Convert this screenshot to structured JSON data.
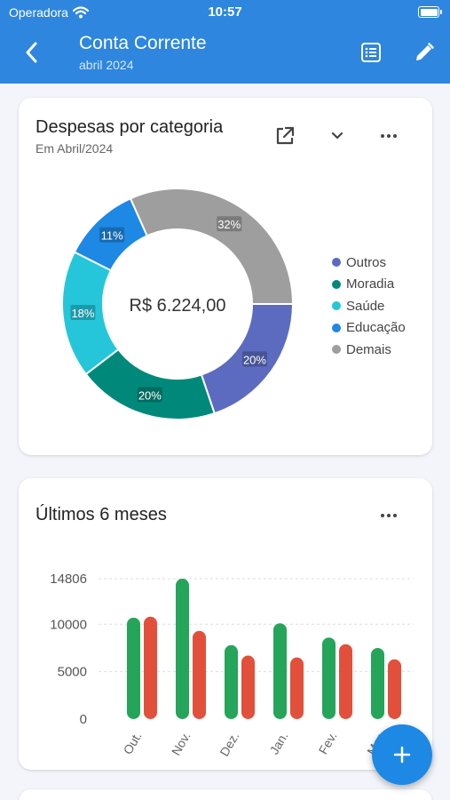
{
  "status_bar": {
    "carrier": "Operadora",
    "time": "10:57"
  },
  "header": {
    "title": "Conta Corrente",
    "subtitle": "abril 2024"
  },
  "donut_card": {
    "title": "Despesas por categoria",
    "subtitle": "Em Abril/2024",
    "total": "R$ 6.224,00"
  },
  "bars_card": {
    "title": "Últimos 6 meses"
  },
  "colors": {
    "primary": "#2e86de",
    "income": "#25a55a",
    "expense": "#e2503c",
    "fab": "#1e88e5"
  },
  "chart_data": [
    {
      "type": "pie",
      "title": "Despesas por categoria",
      "subtitle": "Em Abril/2024",
      "center_label": "R$ 6.224,00",
      "categories": [
        "Outros",
        "Moradia",
        "Saúde",
        "Educação",
        "Demais"
      ],
      "values": [
        20,
        20,
        18,
        11,
        32
      ],
      "labels": [
        "20%",
        "20%",
        "18%",
        "11%",
        "32%"
      ],
      "colors": [
        "#5c6bc0",
        "#00897b",
        "#26c6da",
        "#1e88e5",
        "#9e9e9e"
      ],
      "legend": "right"
    },
    {
      "type": "bar",
      "title": "Últimos 6 meses",
      "categories": [
        "Out.",
        "Nov.",
        "Dez.",
        "Jan.",
        "Fev.",
        "Mar."
      ],
      "series": [
        {
          "values": [
            10700,
            14806,
            7800,
            10100,
            8600,
            7500
          ],
          "color": "#25a55a"
        },
        {
          "values": [
            10800,
            9300,
            6700,
            6500,
            7900,
            6300
          ],
          "color": "#e2503c"
        }
      ],
      "yticks": [
        "0",
        "5000",
        "10000",
        "14806"
      ],
      "ylim": [
        0,
        14806
      ],
      "grid": true
    }
  ]
}
